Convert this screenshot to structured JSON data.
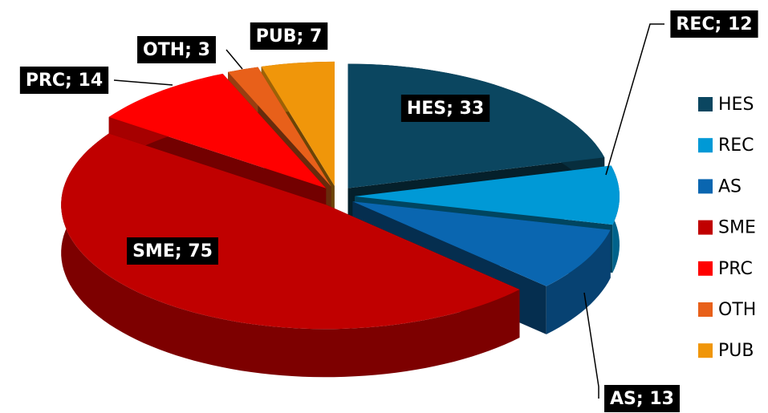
{
  "chart_data": {
    "type": "pie",
    "categories": [
      "HES",
      "REC",
      "AS",
      "SME",
      "PRC",
      "OTH",
      "PUB"
    ],
    "values": [
      33,
      12,
      13,
      75,
      14,
      3,
      7
    ],
    "value_labels": [
      "HES; 33",
      "REC; 12",
      "AS; 13",
      "SME; 75",
      "PRC; 14",
      "OTH; 3",
      "PUB; 7"
    ],
    "colors": [
      "#0b4660",
      "#0099d6",
      "#0a66b0",
      "#c00000",
      "#ff0000",
      "#e8601a",
      "#f0960a"
    ],
    "legend": "right"
  }
}
